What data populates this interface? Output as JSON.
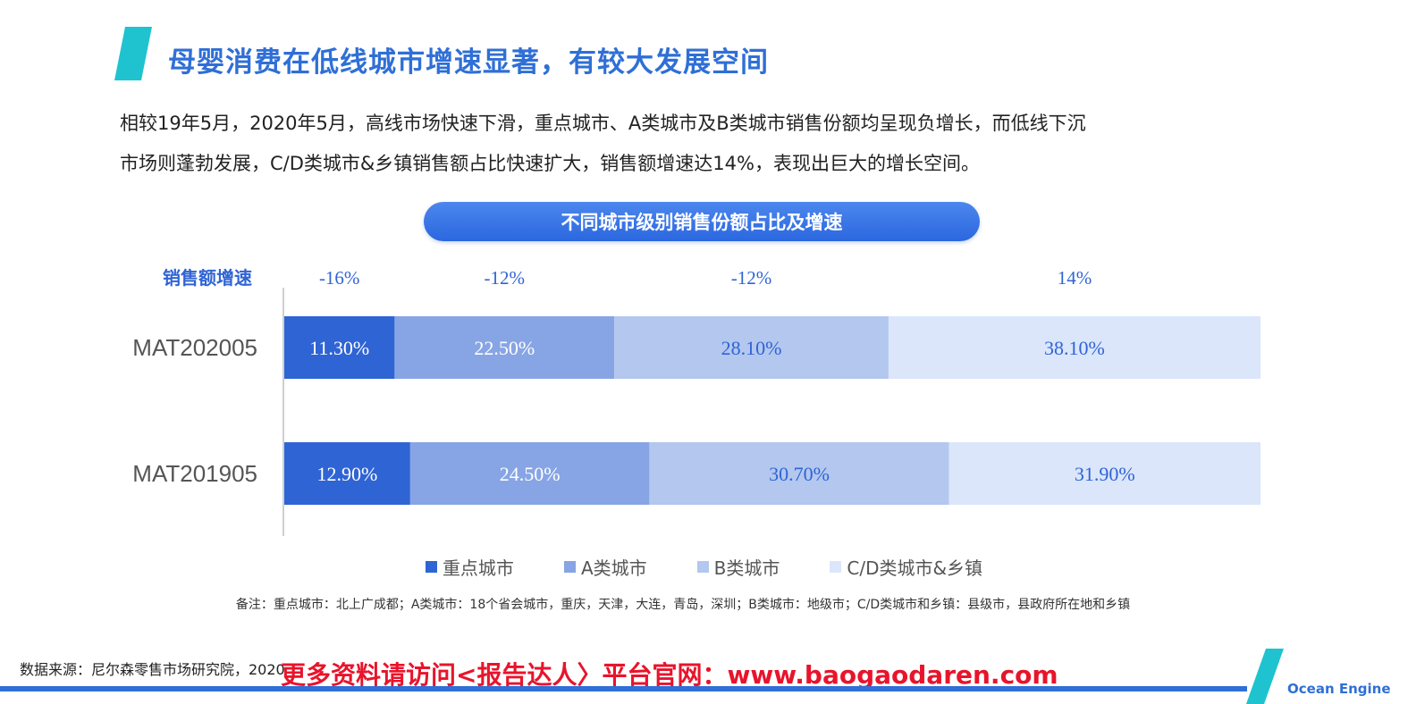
{
  "page": {
    "title": "母婴消费在低线城市增速显著，有较大发展空间",
    "intro_lines": [
      "相较19年5月，2020年5月，高线市场快速下滑，重点城市、A类城市及B类城市销售份额均呈现负增长，而低线下沉",
      "市场则蓬勃发展，C/D类城市&乡镇销售额占比快速扩大，销售额增速达14%，表现出巨大的增长空间。"
    ],
    "note": "备注：重点城市：北上广成都；A类城市：18个省会城市，重庆，天津，大连，青岛，深圳；B类城市：地级市；C/D类城市和乡镇：县级市，县政府所在地和乡镇",
    "source": "数据来源：尼尔森零售市场研究院，2020",
    "promo": "更多资料请访问<报告达人〉平台官网：www.baogaodaren.com",
    "brand": "Ocean Engine",
    "accent_color": "#1ec3cf",
    "brand_color": "#2f6fd6"
  },
  "chart_data": {
    "type": "bar",
    "stacked": true,
    "percent": true,
    "orientation": "horizontal",
    "title": "不同城市级别销售份额占比及增速",
    "categories": [
      "MAT202005",
      "MAT201905"
    ],
    "series": [
      {
        "name": "重点城市",
        "values": [
          11.3,
          12.9
        ],
        "labels": [
          "11.30%",
          "12.90%"
        ],
        "color": "#2f64d4",
        "label_color": "#ffffff"
      },
      {
        "name": "A类城市",
        "values": [
          22.5,
          24.5
        ],
        "labels": [
          "22.50%",
          "24.50%"
        ],
        "color": "#87a5e4",
        "label_color": "#ffffff"
      },
      {
        "name": "B类城市",
        "values": [
          28.1,
          30.7
        ],
        "labels": [
          "28.10%",
          "30.70%"
        ],
        "color": "#b3c7ef",
        "label_color": "#2f64d4"
      },
      {
        "name": "C/D类城市&乡镇",
        "values": [
          38.1,
          31.9
        ],
        "labels": [
          "38.10%",
          "31.90%"
        ],
        "color": "#dbe6fb",
        "label_color": "#2f64d4"
      }
    ],
    "growth": {
      "label": "销售额增速",
      "values": [
        "-16%",
        "-12%",
        "-12%",
        "14%"
      ],
      "color": "#2f64d4"
    },
    "xlim": [
      0,
      100
    ],
    "legend": "bottom"
  }
}
